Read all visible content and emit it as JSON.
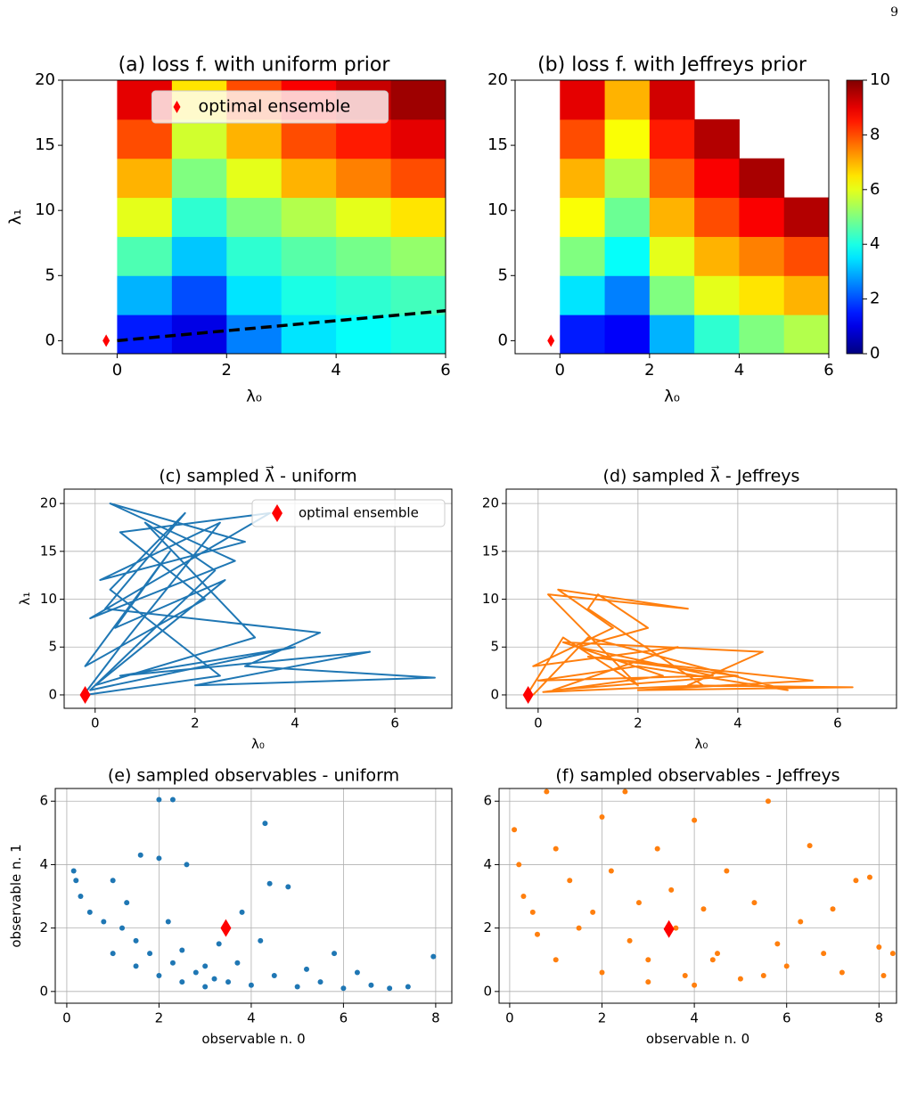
{
  "page_number": "9",
  "chart_data": [
    {
      "type": "heatmap",
      "title": "(a) loss f. with uniform prior",
      "x_label": "λ₀",
      "y_label": "λ₁",
      "colormap": "jet",
      "clim": [
        0,
        10
      ],
      "x_edges": [
        -1,
        0,
        1,
        2,
        3,
        4,
        5,
        6
      ],
      "y_edges": [
        -1,
        2,
        5,
        8,
        11,
        14,
        17,
        20
      ],
      "values": [
        [
          null,
          1.5,
          1.0,
          2.5,
          3.5,
          3.8,
          4.0
        ],
        [
          null,
          3,
          2,
          3.5,
          4,
          4.2,
          4.4
        ],
        [
          null,
          4.5,
          3.2,
          4.2,
          4.6,
          4.9,
          5.2
        ],
        [
          null,
          6,
          4.2,
          5,
          5.5,
          6,
          6.5
        ],
        [
          null,
          7,
          5,
          6,
          7,
          7.5,
          8
        ],
        [
          null,
          8,
          5.8,
          7,
          8,
          8.5,
          9
        ],
        [
          null,
          9,
          6.5,
          8,
          8.8,
          9.3,
          9.7
        ]
      ],
      "dashed_line": {
        "x": [
          0,
          6
        ],
        "y": [
          0,
          2.3
        ]
      },
      "point": {
        "name": "optimal ensemble",
        "x": -0.2,
        "y": 0,
        "color": "red"
      },
      "legend": "upper center",
      "xlim": [
        -1,
        6
      ],
      "ylim": [
        -1,
        20
      ],
      "xticks": [
        0,
        2,
        4,
        6
      ],
      "yticks": [
        0,
        5,
        10,
        15,
        20
      ],
      "grid": false
    },
    {
      "type": "heatmap",
      "title": "(b) loss f. with Jeffreys prior",
      "x_label": "λ₀",
      "colormap": "jet",
      "clim": [
        0,
        10
      ],
      "x_edges": [
        -1,
        0,
        1,
        2,
        3,
        4,
        5,
        6
      ],
      "y_edges": [
        -1,
        2,
        5,
        8,
        11,
        14,
        17,
        20
      ],
      "values": [
        [
          null,
          1.5,
          1.2,
          3,
          4.2,
          5,
          5.5
        ],
        [
          null,
          3.5,
          2.5,
          5,
          6,
          6.5,
          7
        ],
        [
          null,
          5,
          3.8,
          6,
          7,
          7.5,
          8
        ],
        [
          null,
          6.2,
          4.8,
          7,
          8,
          8.8,
          9.5
        ],
        [
          null,
          7,
          5.5,
          7.8,
          8.8,
          9.6,
          null
        ],
        [
          null,
          8,
          6.2,
          8.5,
          9.5,
          null,
          null
        ],
        [
          null,
          9,
          7,
          9.2,
          null,
          null,
          null
        ]
      ],
      "point": {
        "x": -0.2,
        "y": 0,
        "color": "red"
      },
      "colorbar_ticks": [
        0,
        2,
        4,
        6,
        8,
        10
      ],
      "xlim": [
        -1,
        6
      ],
      "ylim": [
        -1,
        20
      ],
      "xticks": [
        0,
        2,
        4,
        6
      ],
      "yticks": [
        0,
        5,
        10,
        15,
        20
      ],
      "grid": false
    },
    {
      "type": "line",
      "title": "(c) sampled λ⃗ - uniform",
      "x_label": "λ₀",
      "y_label": "λ₁",
      "color": "#1f77b4",
      "x": [
        -0.2,
        0.5,
        2.5,
        0.1,
        3,
        0.3,
        2.8,
        -0.1,
        3.5,
        0.5,
        2.2,
        -0.2,
        1.5,
        0.4,
        2.6,
        0,
        3.2,
        1,
        2.4,
        -0.1,
        4,
        0.5,
        5.5,
        2,
        6.8,
        3,
        4.5,
        0.2,
        1.8,
        0.3,
        2.5,
        -0.2
      ],
      "y": [
        0.2,
        5,
        18,
        12,
        16,
        20,
        14,
        8,
        19,
        17,
        10,
        3,
        15,
        7,
        12,
        1,
        6,
        18,
        13,
        0.5,
        5,
        2,
        4.5,
        1,
        1.8,
        3,
        6.5,
        9,
        19,
        11,
        2,
        0
      ],
      "point": {
        "name": "optimal ensemble",
        "x": -0.2,
        "y": 0,
        "color": "red"
      },
      "legend": "upper right",
      "xlim": [
        -0.62,
        7.14
      ],
      "ylim": [
        -1.4,
        21.5
      ],
      "xticks": [
        0,
        2,
        4,
        6
      ],
      "yticks": [
        0,
        5,
        10,
        15,
        20
      ],
      "grid": true
    },
    {
      "type": "line",
      "title": "(d) sampled λ⃗ - Jeffreys",
      "x_label": "λ₀",
      "color": "#ff7f0e",
      "x": [
        -0.2,
        0.5,
        2,
        0.2,
        3,
        0.4,
        1.5,
        -0.1,
        2.8,
        0.3,
        4,
        1,
        5.5,
        2,
        6.3,
        3,
        4.5,
        0.5,
        2.5,
        0.1,
        3.3,
        1,
        1.2,
        2.2,
        0.8,
        3.5,
        0,
        2,
        5,
        1,
        -0.1
      ],
      "y": [
        0.2,
        6,
        1,
        10.5,
        9,
        11,
        7,
        3,
        5,
        0.5,
        2,
        4,
        1.5,
        0.5,
        0.8,
        1,
        4.5,
        5.5,
        2,
        0.3,
        1,
        9,
        10.5,
        7,
        5,
        2,
        1.5,
        3,
        0.5,
        6,
        0
      ],
      "point": {
        "x": -0.2,
        "y": 0,
        "color": "red"
      },
      "xlim": [
        -0.64,
        7.18
      ],
      "ylim": [
        -1.4,
        21.5
      ],
      "xticks": [
        0,
        2,
        4,
        6
      ],
      "yticks": [
        0,
        5,
        10,
        15,
        20
      ],
      "grid": true
    },
    {
      "type": "scatter",
      "title": "(e) sampled observables - uniform",
      "x_label": "observable n. 0",
      "y_label": "observable n. 1",
      "color": "#1f77b4",
      "x": [
        0.15,
        0.2,
        0.3,
        0.5,
        0.8,
        1.0,
        1.2,
        1.5,
        1.8,
        2.0,
        2.0,
        2.3,
        2.5,
        2.6,
        2.8,
        3.0,
        3.2,
        3.3,
        3.5,
        3.7,
        4.0,
        4.3,
        4.4,
        4.5,
        4.8,
        5.0,
        5.2,
        5.5,
        5.8,
        6.0,
        6.3,
        6.6,
        7.0,
        7.4,
        7.95,
        1.0,
        1.5,
        2.0,
        2.5,
        3.0,
        1.3,
        2.2,
        3.8,
        4.2,
        1.6,
        2.3
      ],
      "y": [
        3.8,
        3.5,
        3.0,
        2.5,
        2.2,
        3.5,
        2.0,
        1.6,
        1.2,
        6.05,
        4.2,
        0.9,
        1.3,
        4.0,
        0.6,
        0.8,
        0.4,
        1.5,
        0.3,
        0.9,
        0.2,
        5.3,
        3.4,
        0.5,
        3.3,
        0.15,
        0.7,
        0.3,
        1.2,
        0.1,
        0.6,
        0.2,
        0.1,
        0.15,
        1.1,
        1.2,
        0.8,
        0.5,
        0.3,
        0.15,
        2.8,
        2.2,
        2.5,
        1.6,
        4.3,
        6.05
      ],
      "point": {
        "x": 3.45,
        "y": 2.0,
        "color": "red"
      },
      "xlim": [
        -0.25,
        8.35
      ],
      "ylim": [
        -0.37,
        6.4
      ],
      "xticks": [
        0,
        2,
        4,
        6,
        8
      ],
      "yticks": [
        0,
        2,
        4,
        6
      ],
      "grid": true
    },
    {
      "type": "scatter",
      "title": "(f) sampled observables - Jeffreys",
      "x_label": "observable n. 0",
      "color": "#ff7f0e",
      "x": [
        0.1,
        0.2,
        0.3,
        0.5,
        0.8,
        1,
        1.3,
        1.5,
        2,
        2.2,
        2.5,
        2.8,
        3,
        3.2,
        3.5,
        3.8,
        4,
        4.2,
        4.5,
        4.7,
        5,
        5.3,
        5.6,
        5.8,
        6.0,
        6.3,
        6.5,
        6.8,
        7.0,
        7.2,
        7.5,
        7.8,
        8.0,
        8.1,
        8.3,
        1.0,
        2.0,
        3,
        4,
        1.8,
        2.6,
        4.4,
        0.6,
        3.6,
        5.5
      ],
      "y": [
        5.1,
        4.0,
        3.0,
        2.5,
        6.3,
        4.5,
        3.5,
        2.0,
        5.5,
        3.8,
        6.3,
        2.8,
        1.0,
        4.5,
        3.2,
        0.5,
        5.4,
        2.6,
        1.2,
        3.8,
        0.4,
        2.8,
        6.0,
        1.5,
        0.8,
        2.2,
        4.6,
        1.2,
        2.6,
        0.6,
        3.5,
        3.6,
        1.4,
        0.5,
        1.2,
        1.0,
        0.6,
        0.3,
        0.2,
        2.5,
        1.6,
        1.0,
        1.8,
        2.0,
        0.5
      ],
      "point": {
        "x": 3.45,
        "y": 1.97,
        "color": "red"
      },
      "xlim": [
        -0.23,
        8.38
      ],
      "ylim": [
        -0.37,
        6.4
      ],
      "xticks": [
        0,
        2,
        4,
        6,
        8
      ],
      "yticks": [
        0,
        2,
        4,
        6
      ],
      "grid": true
    }
  ]
}
